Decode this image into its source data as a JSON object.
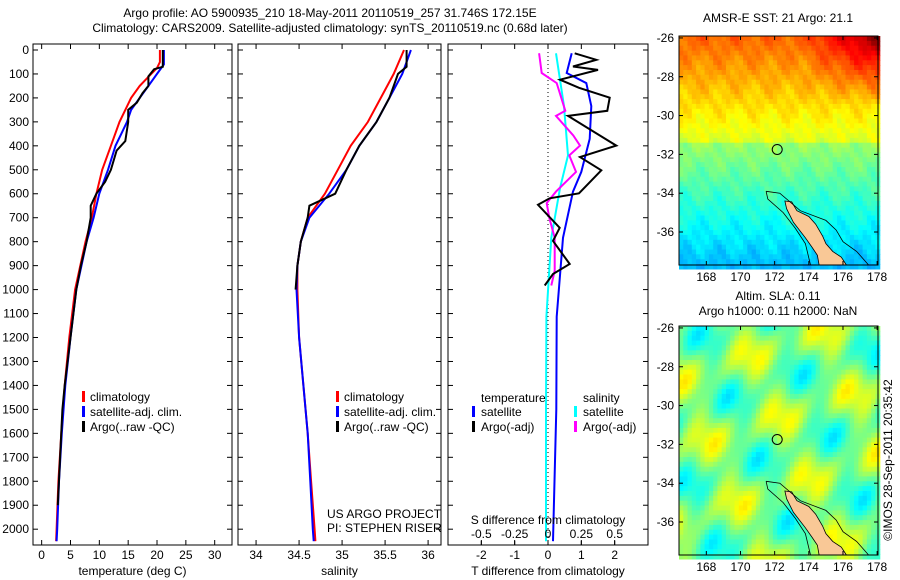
{
  "title": {
    "line1": "Argo profile: AO 5900935_210 18-May-2011 20110519_257 31.746S 172.15E",
    "line2": "Climatology: CARS2009. Satellite-adjusted climatology: synTS_20110519.nc (0.68d later)"
  },
  "credit": {
    "project": "US ARGO PROJECT",
    "pi": "PI: STEPHEN RISER",
    "imos": "©IMOS 28-Sep-2011 20:35:42"
  },
  "colors": {
    "climatology": "#ff0000",
    "satellite": "#0000ff",
    "argo": "#000000",
    "sat_salinity": "#00ffff",
    "argo_salinity": "#ff00ff",
    "land": "#f9c896"
  },
  "chart_data": [
    {
      "type": "line",
      "name": "temperature",
      "xlabel": "temperature (deg C)",
      "ylabel": "depth",
      "xlim": [
        -1.5,
        33
      ],
      "ylim": [
        2066,
        -25
      ],
      "xticks": [
        0,
        5,
        10,
        15,
        20,
        25,
        30
      ],
      "yticks": [
        0,
        100,
        200,
        300,
        400,
        500,
        600,
        700,
        800,
        900,
        1000,
        1100,
        1200,
        1300,
        1400,
        1500,
        1600,
        1700,
        1800,
        1900,
        2000
      ],
      "legend": [
        "climatology",
        "satellite-adj. clim.",
        "Argo(..raw -QC)"
      ],
      "series": [
        {
          "name": "climatology",
          "color": "#ff0000",
          "depth": [
            0,
            50,
            75,
            100,
            150,
            200,
            250,
            300,
            400,
            500,
            600,
            700,
            800,
            900,
            1000,
            1200,
            1400,
            1600,
            1800,
            2000,
            2050
          ],
          "values": [
            20.5,
            20.5,
            20,
            19,
            17,
            15.5,
            14.5,
            13.5,
            12,
            10.5,
            9.5,
            8.7,
            7.6,
            6.7,
            5.8,
            4.8,
            4,
            3.4,
            2.9,
            2.6,
            2.5
          ]
        },
        {
          "name": "satellite-adj. clim.",
          "color": "#0000ff",
          "depth": [
            0,
            60,
            100,
            150,
            200,
            250,
            300,
            350,
            400,
            500,
            600,
            700,
            800,
            900,
            1000,
            1200,
            1400,
            1600,
            1800,
            2000,
            2050
          ],
          "values": [
            21.2,
            21.2,
            20,
            18.5,
            17,
            15.5,
            14.8,
            13.8,
            12.8,
            11.5,
            10,
            9,
            7.8,
            6.9,
            6,
            5,
            4.1,
            3.5,
            3,
            2.7,
            2.6
          ]
        },
        {
          "name": "Argo(..raw -QC)",
          "color": "#000000",
          "depth": [
            0,
            70,
            80,
            110,
            150,
            180,
            220,
            250,
            300,
            380,
            420,
            500,
            550,
            600,
            650,
            700,
            800,
            900,
            1000,
            1100,
            1200,
            1300,
            1400,
            1500,
            1700,
            1900
          ],
          "values": [
            21,
            21,
            19.5,
            18.5,
            18.5,
            17.5,
            16.5,
            15,
            15,
            14.5,
            13,
            12,
            11,
            9.5,
            8.5,
            8.5,
            7.8,
            6.8,
            6,
            5.5,
            5,
            4.5,
            4,
            3.6,
            3.2,
            2.8
          ]
        }
      ]
    },
    {
      "type": "line",
      "name": "salinity",
      "xlabel": "salinity",
      "xlim": [
        33.79,
        36.15
      ],
      "ylim": [
        2066,
        -25
      ],
      "xticks": [
        34,
        34.5,
        35,
        35.5,
        36
      ],
      "legend": [
        "climatology",
        "satellite-adj. clim.",
        "Argo(..raw -QC)"
      ],
      "series": [
        {
          "name": "climatology",
          "color": "#ff0000",
          "depth": [
            0,
            100,
            200,
            300,
            400,
            500,
            600,
            700,
            800,
            900,
            1000,
            1200,
            1400,
            1600,
            1800,
            2000,
            2050
          ],
          "values": [
            35.72,
            35.6,
            35.45,
            35.3,
            35.1,
            34.95,
            34.8,
            34.6,
            34.52,
            34.48,
            34.48,
            34.5,
            34.55,
            34.6,
            34.64,
            34.68,
            34.69
          ]
        },
        {
          "name": "satellite-adj. clim.",
          "color": "#0000ff",
          "depth": [
            0,
            100,
            200,
            300,
            400,
            500,
            600,
            700,
            800,
            900,
            1000,
            1200,
            1400,
            1600,
            1800,
            2000,
            2050
          ],
          "values": [
            35.8,
            35.7,
            35.55,
            35.4,
            35.2,
            35.05,
            34.85,
            34.62,
            34.52,
            34.48,
            34.47,
            34.5,
            34.55,
            34.6,
            34.63,
            34.66,
            34.67
          ]
        },
        {
          "name": "Argo(..raw -QC)",
          "color": "#000000",
          "depth": [
            0,
            70,
            100,
            200,
            300,
            400,
            500,
            600,
            650,
            700,
            800,
            900,
            1000
          ],
          "values": [
            35.75,
            35.75,
            35.65,
            35.55,
            35.4,
            35.2,
            35.05,
            34.92,
            34.62,
            34.6,
            34.52,
            34.48,
            34.46
          ]
        }
      ]
    },
    {
      "type": "line",
      "name": "difference",
      "xlabel": "T difference from climatology",
      "x2label": "S difference from climatology",
      "xlim": [
        -3,
        3
      ],
      "x2lim": [
        -0.75,
        0.75
      ],
      "ylim": [
        2066,
        -25
      ],
      "xticks": [
        -2,
        -1,
        0,
        1,
        2
      ],
      "x2ticks": [
        -0.5,
        -0.25,
        0,
        0.25,
        0.5
      ],
      "legend": {
        "temperature_header": "temperature",
        "salinity_header": "salinity",
        "items": [
          "satellite",
          "Argo(-adj)",
          "satellite",
          "Argo(-adj)"
        ]
      },
      "series": [
        {
          "name": "T satellite",
          "axis": "T",
          "color": "#0000ff",
          "depth": [
            14,
            96,
            138,
            234,
            371,
            509,
            591,
            784,
            1113,
            1500,
            2050
          ],
          "values": [
            0.71,
            0.56,
            1.15,
            1.3,
            1.25,
            1.0,
            0.75,
            0.45,
            0.26,
            0.25,
            0.15
          ]
        },
        {
          "name": "T Argo(-adj)",
          "axis": "T",
          "color": "#000000",
          "depth": [
            14,
            41,
            69,
            83,
            124,
            158,
            199,
            254,
            275,
            399,
            447,
            502,
            598,
            619,
            646,
            742,
            797,
            893,
            935,
            983
          ],
          "values": [
            0.8,
            1.45,
            0.75,
            1.5,
            0.36,
            0.93,
            1.85,
            1.78,
            0.6,
            2.05,
            0.96,
            1.6,
            0.93,
            0.05,
            -0.3,
            0.35,
            0.15,
            0.65,
            0.15,
            -0.1
          ]
        },
        {
          "name": "S satellite",
          "axis": "S",
          "color": "#00ffff",
          "depth": [
            14,
            234,
            440,
            577,
            784,
            1113,
            1500,
            2050
          ],
          "values": [
            0.06,
            0.12,
            0.15,
            0.09,
            0.025,
            -0.012,
            -0.015,
            -0.015
          ]
        },
        {
          "name": "S Argo(-adj)",
          "axis": "S",
          "color": "#ff00ff",
          "depth": [
            14,
            96,
            138,
            254,
            275,
            357,
            399,
            440,
            509,
            591,
            639,
            701,
            784,
            921,
            983
          ],
          "values": [
            -0.067,
            -0.047,
            0.065,
            0.13,
            0.06,
            0.19,
            0.24,
            0.16,
            0.21,
            0.06,
            -0.01,
            0.01,
            0.05,
            0.05,
            0.025
          ]
        }
      ]
    },
    {
      "type": "heatmap",
      "name": "sst-map",
      "title": "AMSR-E SST: 21 Argo: 21.1",
      "xlim": [
        166.4,
        178.05
      ],
      "ylim": [
        -37.7,
        -25.9
      ],
      "xticks": [
        168,
        170,
        172,
        174,
        176,
        178
      ],
      "yticks": [
        -26,
        -28,
        -30,
        -32,
        -34,
        -36
      ],
      "marker": {
        "lon": 172.15,
        "lat": -31.746
      }
    },
    {
      "type": "heatmap",
      "name": "sla-map",
      "title": "Altim. SLA: 0.11",
      "subtitle": "Argo h1000: 0.11 h2000: NaN",
      "xlim": [
        166.4,
        178.05
      ],
      "ylim": [
        -37.7,
        -25.9
      ],
      "xticks": [
        168,
        170,
        172,
        174,
        176,
        178
      ],
      "yticks": [
        -26,
        -28,
        -30,
        -32,
        -34,
        -36
      ],
      "marker": {
        "lon": 172.15,
        "lat": -31.746
      }
    }
  ]
}
